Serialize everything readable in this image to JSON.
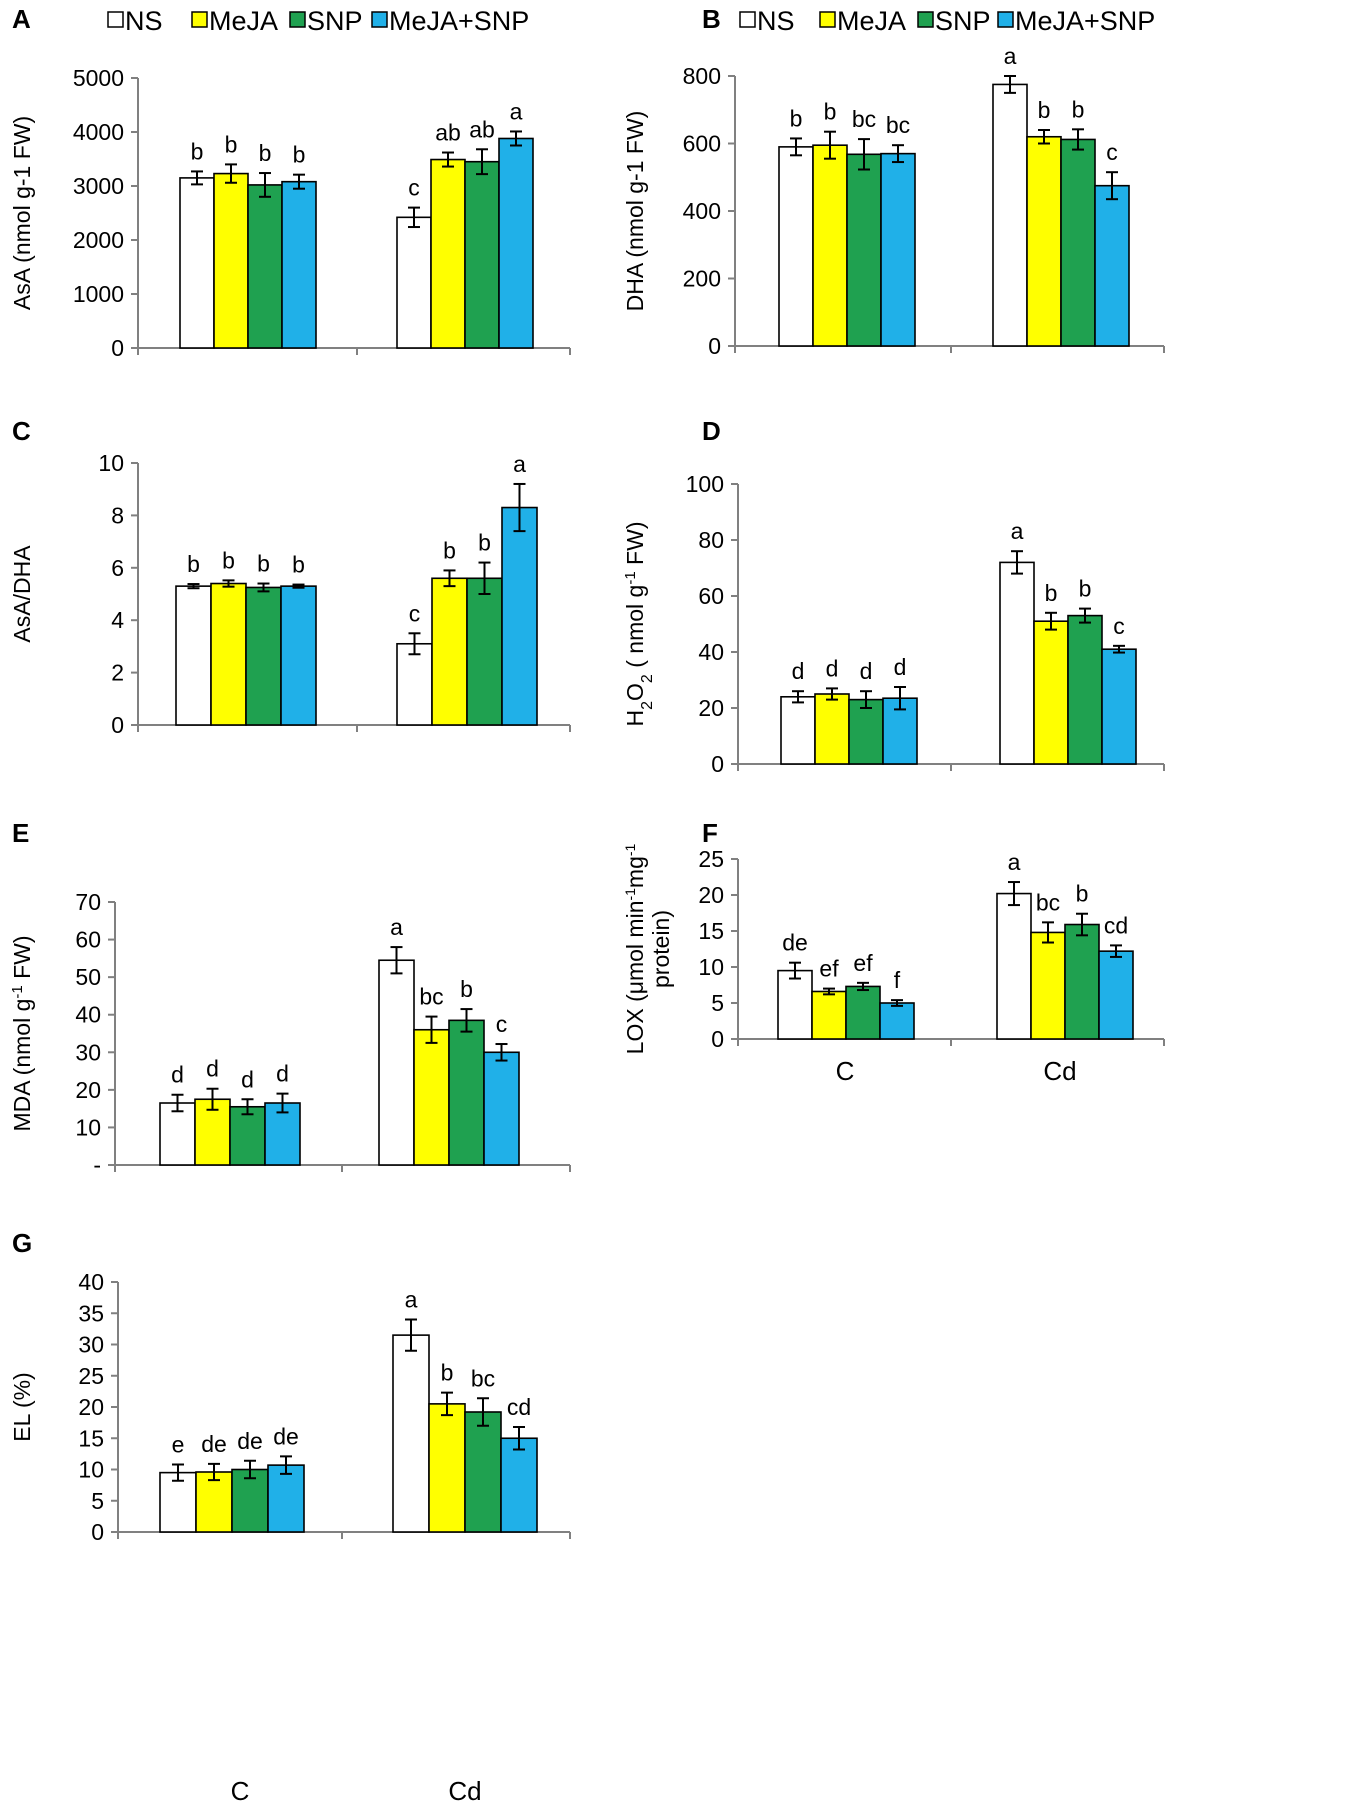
{
  "colors": {
    "NS": "#ffffff",
    "MeJA": "#ffff00",
    "SNP": "#1fa150",
    "MeJA+SNP": "#20b0e8"
  },
  "legend": [
    "NS",
    "MeJA",
    "SNP",
    "MeJA+SNP"
  ],
  "chart_data": [
    {
      "type": "bar",
      "panel": "A",
      "ylabel": "AsA (nmol g-1 FW)",
      "yticks": [
        "0",
        "1000",
        "2000",
        "3000",
        "4000",
        "5000"
      ],
      "ylim": [
        0,
        5000
      ],
      "categories": [
        "C",
        "Cd"
      ],
      "show_categories": false,
      "series": [
        {
          "name": "NS",
          "values": [
            3150,
            2420
          ],
          "errors": [
            120,
            180
          ],
          "labels": [
            "b",
            "c"
          ]
        },
        {
          "name": "MeJA",
          "values": [
            3230,
            3490
          ],
          "errors": [
            170,
            130
          ],
          "labels": [
            "b",
            "ab"
          ]
        },
        {
          "name": "SNP",
          "values": [
            3020,
            3450
          ],
          "errors": [
            220,
            230
          ],
          "labels": [
            "b",
            "ab"
          ]
        },
        {
          "name": "MeJA+SNP",
          "values": [
            3080,
            3880
          ],
          "errors": [
            130,
            130
          ],
          "labels": [
            "b",
            "a"
          ]
        }
      ]
    },
    {
      "type": "bar",
      "panel": "B",
      "ylabel": "DHA (nmol g-1 FW)",
      "yticks": [
        "0",
        "200",
        "400",
        "600",
        "800"
      ],
      "ylim": [
        0,
        800
      ],
      "categories": [
        "C",
        "Cd"
      ],
      "show_categories": false,
      "series": [
        {
          "name": "NS",
          "values": [
            590,
            775
          ],
          "errors": [
            25,
            25
          ],
          "labels": [
            "b",
            "a"
          ]
        },
        {
          "name": "MeJA",
          "values": [
            595,
            620
          ],
          "errors": [
            40,
            20
          ],
          "labels": [
            "b",
            "b"
          ]
        },
        {
          "name": "SNP",
          "values": [
            568,
            612
          ],
          "errors": [
            45,
            30
          ],
          "labels": [
            "bc",
            "b"
          ]
        },
        {
          "name": "MeJA+SNP",
          "values": [
            570,
            475
          ],
          "errors": [
            25,
            40
          ],
          "labels": [
            "bc",
            "c"
          ]
        }
      ]
    },
    {
      "type": "bar",
      "panel": "C",
      "ylabel": "AsA/DHA",
      "yticks": [
        "0",
        "2",
        "4",
        "6",
        "8",
        "10"
      ],
      "ylim": [
        0,
        10
      ],
      "categories": [
        "C",
        "Cd"
      ],
      "show_categories": false,
      "series": [
        {
          "name": "NS",
          "values": [
            5.3,
            3.1
          ],
          "errors": [
            0.08,
            0.4
          ],
          "labels": [
            "b",
            "c"
          ]
        },
        {
          "name": "MeJA",
          "values": [
            5.4,
            5.6
          ],
          "errors": [
            0.12,
            0.3
          ],
          "labels": [
            "b",
            "b"
          ]
        },
        {
          "name": "SNP",
          "values": [
            5.25,
            5.6
          ],
          "errors": [
            0.15,
            0.6
          ],
          "labels": [
            "b",
            "b"
          ]
        },
        {
          "name": "MeJA+SNP",
          "values": [
            5.3,
            8.3
          ],
          "errors": [
            0.06,
            0.9
          ],
          "labels": [
            "b",
            "a"
          ]
        }
      ]
    },
    {
      "type": "bar",
      "panel": "D",
      "ylabel": "H2O2 ( nmol g-1 FW)",
      "yticks": [
        "0",
        "20",
        "40",
        "60",
        "80",
        "100"
      ],
      "ylim": [
        0,
        100
      ],
      "categories": [
        "C",
        "Cd"
      ],
      "show_categories": false,
      "series": [
        {
          "name": "NS",
          "values": [
            24,
            72
          ],
          "errors": [
            2,
            4
          ],
          "labels": [
            "d",
            "a"
          ]
        },
        {
          "name": "MeJA",
          "values": [
            25,
            51
          ],
          "errors": [
            2,
            3
          ],
          "labels": [
            "d",
            "b"
          ]
        },
        {
          "name": "SNP",
          "values": [
            23,
            53
          ],
          "errors": [
            3,
            2.5
          ],
          "labels": [
            "d",
            "b"
          ]
        },
        {
          "name": "MeJA+SNP",
          "values": [
            23.5,
            41
          ],
          "errors": [
            4,
            1.2
          ],
          "labels": [
            "d",
            "c"
          ]
        }
      ]
    },
    {
      "type": "bar",
      "panel": "E",
      "ylabel": "MDA (nmol g-1 FW)",
      "yticks": [
        "-",
        "10",
        "20",
        "30",
        "40",
        "50",
        "60",
        "70"
      ],
      "ylim": [
        0,
        70
      ],
      "categories": [
        "C",
        "Cd"
      ],
      "show_categories": false,
      "series": [
        {
          "name": "NS",
          "values": [
            16.5,
            54.5
          ],
          "errors": [
            2.2,
            3.5
          ],
          "labels": [
            "d",
            "a"
          ]
        },
        {
          "name": "MeJA",
          "values": [
            17.5,
            36
          ],
          "errors": [
            2.8,
            3.5
          ],
          "labels": [
            "d",
            "bc"
          ]
        },
        {
          "name": "SNP",
          "values": [
            15.5,
            38.5
          ],
          "errors": [
            2,
            3
          ],
          "labels": [
            "d",
            "b"
          ]
        },
        {
          "name": "MeJA+SNP",
          "values": [
            16.5,
            30
          ],
          "errors": [
            2.5,
            2.2
          ],
          "labels": [
            "d",
            "c"
          ]
        }
      ]
    },
    {
      "type": "bar",
      "panel": "F",
      "ylabel": "LOX (μmol min-1mg-1 protein)",
      "yticks": [
        "0",
        "5",
        "10",
        "15",
        "20",
        "25"
      ],
      "ylim": [
        0,
        25
      ],
      "categories": [
        "C",
        "Cd"
      ],
      "show_categories": true,
      "series": [
        {
          "name": "NS",
          "values": [
            9.5,
            20.2
          ],
          "errors": [
            1.1,
            1.6
          ],
          "labels": [
            "de",
            "a"
          ]
        },
        {
          "name": "MeJA",
          "values": [
            6.6,
            14.8
          ],
          "errors": [
            0.4,
            1.4
          ],
          "labels": [
            "ef",
            "bc"
          ]
        },
        {
          "name": "SNP",
          "values": [
            7.3,
            15.9
          ],
          "errors": [
            0.5,
            1.5
          ],
          "labels": [
            "ef",
            "b"
          ]
        },
        {
          "name": "MeJA+SNP",
          "values": [
            5.0,
            12.2
          ],
          "errors": [
            0.4,
            0.8
          ],
          "labels": [
            "f",
            "cd"
          ]
        }
      ]
    },
    {
      "type": "bar",
      "panel": "G",
      "ylabel": "EL (%)",
      "yticks": [
        "0",
        "5",
        "10",
        "15",
        "20",
        "25",
        "30",
        "35",
        "40"
      ],
      "ylim": [
        0,
        40
      ],
      "categories": [
        "C",
        "Cd"
      ],
      "show_categories": true,
      "series": [
        {
          "name": "NS",
          "values": [
            9.5,
            31.5
          ],
          "errors": [
            1.3,
            2.5
          ],
          "labels": [
            "e",
            "a"
          ]
        },
        {
          "name": "MeJA",
          "values": [
            9.6,
            20.5
          ],
          "errors": [
            1.3,
            1.8
          ],
          "labels": [
            "de",
            "b"
          ]
        },
        {
          "name": "SNP",
          "values": [
            10.0,
            19.2
          ],
          "errors": [
            1.4,
            2.2
          ],
          "labels": [
            "de",
            "bc"
          ]
        },
        {
          "name": "MeJA+SNP",
          "values": [
            10.7,
            15.0
          ],
          "errors": [
            1.4,
            1.8
          ],
          "labels": [
            "de",
            "cd"
          ]
        }
      ]
    }
  ]
}
